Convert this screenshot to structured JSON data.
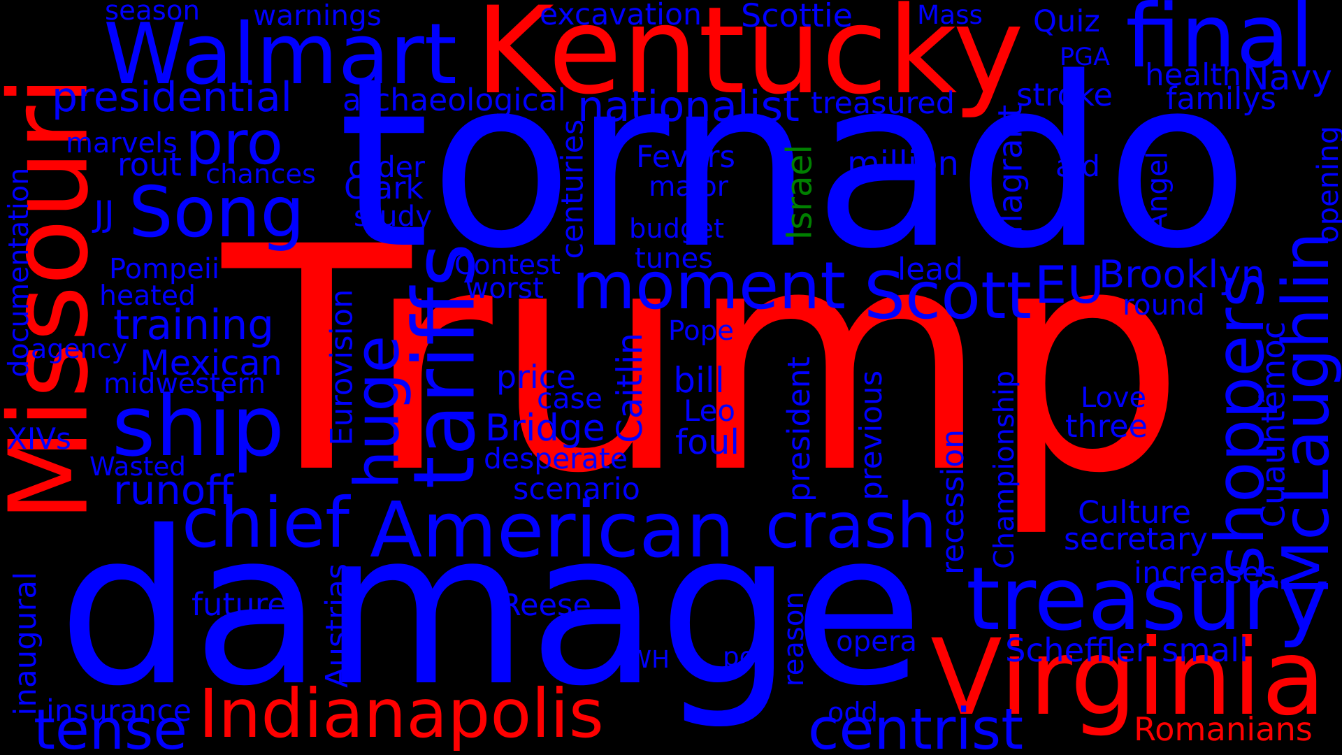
{
  "colors": {
    "background": "#000000",
    "red": "#ff0000",
    "blue": "#0000ff",
    "green": "#008000"
  },
  "words": [
    {
      "text": "Trump",
      "color": "red"
    },
    {
      "text": "tornado",
      "color": "blue"
    },
    {
      "text": "damage",
      "color": "blue"
    },
    {
      "text": "Kentucky",
      "color": "red"
    },
    {
      "text": "Missouri",
      "color": "red"
    },
    {
      "text": "Walmart",
      "color": "blue"
    },
    {
      "text": "final",
      "color": "blue"
    },
    {
      "text": "Virginia",
      "color": "red"
    },
    {
      "text": "treasury",
      "color": "blue"
    },
    {
      "text": "American",
      "color": "blue"
    },
    {
      "text": "moment",
      "color": "blue"
    },
    {
      "text": "Song",
      "color": "blue"
    },
    {
      "text": "ship",
      "color": "blue"
    },
    {
      "text": "crash",
      "color": "blue"
    },
    {
      "text": "chief",
      "color": "blue"
    },
    {
      "text": "Scott",
      "color": "blue"
    },
    {
      "text": "centrist",
      "color": "blue"
    },
    {
      "text": "Indianapolis",
      "color": "red"
    },
    {
      "text": "tense",
      "color": "blue"
    },
    {
      "text": "pro",
      "color": "blue"
    },
    {
      "text": "McLaughlin",
      "color": "blue"
    },
    {
      "text": "shoppers",
      "color": "blue"
    },
    {
      "text": "tariffs",
      "color": "blue"
    },
    {
      "text": "huge",
      "color": "blue"
    },
    {
      "text": "EU",
      "color": "blue"
    },
    {
      "text": "Brooklyn",
      "color": "blue"
    },
    {
      "text": "presidential",
      "color": "blue"
    },
    {
      "text": "nationalist",
      "color": "blue"
    },
    {
      "text": "Mexican",
      "color": "blue"
    },
    {
      "text": "training",
      "color": "blue"
    },
    {
      "text": "runoff",
      "color": "blue"
    },
    {
      "text": "Bridge",
      "color": "blue"
    },
    {
      "text": "Cuauhtémoc",
      "color": "blue"
    },
    {
      "text": "Romanians",
      "color": "red"
    },
    {
      "text": "Navy",
      "color": "blue"
    },
    {
      "text": "season",
      "color": "blue"
    },
    {
      "text": "warnings",
      "color": "blue"
    },
    {
      "text": "excavation",
      "color": "blue"
    },
    {
      "text": "Scottie",
      "color": "blue"
    },
    {
      "text": "Mass",
      "color": "blue"
    },
    {
      "text": "Quiz",
      "color": "blue"
    },
    {
      "text": "PGA",
      "color": "blue"
    },
    {
      "text": "health",
      "color": "blue"
    },
    {
      "text": "familys",
      "color": "blue"
    },
    {
      "text": "archaeological",
      "color": "blue"
    },
    {
      "text": "treasured",
      "color": "blue"
    },
    {
      "text": "stroke",
      "color": "blue"
    },
    {
      "text": "marvels",
      "color": "blue"
    },
    {
      "text": "rout",
      "color": "blue"
    },
    {
      "text": "chances",
      "color": "blue"
    },
    {
      "text": "order",
      "color": "blue"
    },
    {
      "text": "Clark",
      "color": "blue"
    },
    {
      "text": "study",
      "color": "blue"
    },
    {
      "text": "JJ",
      "color": "blue"
    },
    {
      "text": "Fevers",
      "color": "blue"
    },
    {
      "text": "major",
      "color": "blue"
    },
    {
      "text": "budget",
      "color": "blue"
    },
    {
      "text": "tunes",
      "color": "blue"
    },
    {
      "text": "million",
      "color": "blue"
    },
    {
      "text": "aid",
      "color": "blue"
    },
    {
      "text": "Israel",
      "color": "green"
    },
    {
      "text": "flagrant",
      "color": "blue"
    },
    {
      "text": "Angel",
      "color": "blue"
    },
    {
      "text": "opening",
      "color": "blue"
    },
    {
      "text": "centuries",
      "color": "blue"
    },
    {
      "text": "documentation",
      "color": "blue"
    },
    {
      "text": "Pompeii",
      "color": "blue"
    },
    {
      "text": "Contest",
      "color": "blue"
    },
    {
      "text": "worst",
      "color": "blue"
    },
    {
      "text": "lead",
      "color": "blue"
    },
    {
      "text": "round",
      "color": "blue"
    },
    {
      "text": "heated",
      "color": "blue"
    },
    {
      "text": "agency",
      "color": "blue"
    },
    {
      "text": "Pope",
      "color": "blue"
    },
    {
      "text": "midwestern",
      "color": "blue"
    },
    {
      "text": "price",
      "color": "blue"
    },
    {
      "text": "bill",
      "color": "blue"
    },
    {
      "text": "case",
      "color": "blue"
    },
    {
      "text": "Leo",
      "color": "blue"
    },
    {
      "text": "Love",
      "color": "blue"
    },
    {
      "text": "three",
      "color": "blue"
    },
    {
      "text": "foul",
      "color": "blue"
    },
    {
      "text": "XIVs",
      "color": "blue"
    },
    {
      "text": "Wasted",
      "color": "blue"
    },
    {
      "text": "desperate",
      "color": "blue"
    },
    {
      "text": "scenario",
      "color": "blue"
    },
    {
      "text": "Eurovision",
      "color": "blue"
    },
    {
      "text": "Caitlin",
      "color": "blue"
    },
    {
      "text": "president",
      "color": "blue"
    },
    {
      "text": "previous",
      "color": "blue"
    },
    {
      "text": "Championship",
      "color": "blue"
    },
    {
      "text": "recession",
      "color": "blue"
    },
    {
      "text": "Culture",
      "color": "blue"
    },
    {
      "text": "secretary",
      "color": "blue"
    },
    {
      "text": "increases",
      "color": "blue"
    },
    {
      "text": "Scheffler",
      "color": "blue"
    },
    {
      "text": "small",
      "color": "blue"
    },
    {
      "text": "future",
      "color": "blue"
    },
    {
      "text": "Reese",
      "color": "blue"
    },
    {
      "text": "reason",
      "color": "blue"
    },
    {
      "text": "opera",
      "color": "blue"
    },
    {
      "text": "WH",
      "color": "blue"
    },
    {
      "text": "pop",
      "color": "blue"
    },
    {
      "text": "Austrias",
      "color": "blue"
    },
    {
      "text": "inaugural",
      "color": "blue"
    },
    {
      "text": "insurance",
      "color": "blue"
    },
    {
      "text": "odd",
      "color": "blue"
    }
  ]
}
